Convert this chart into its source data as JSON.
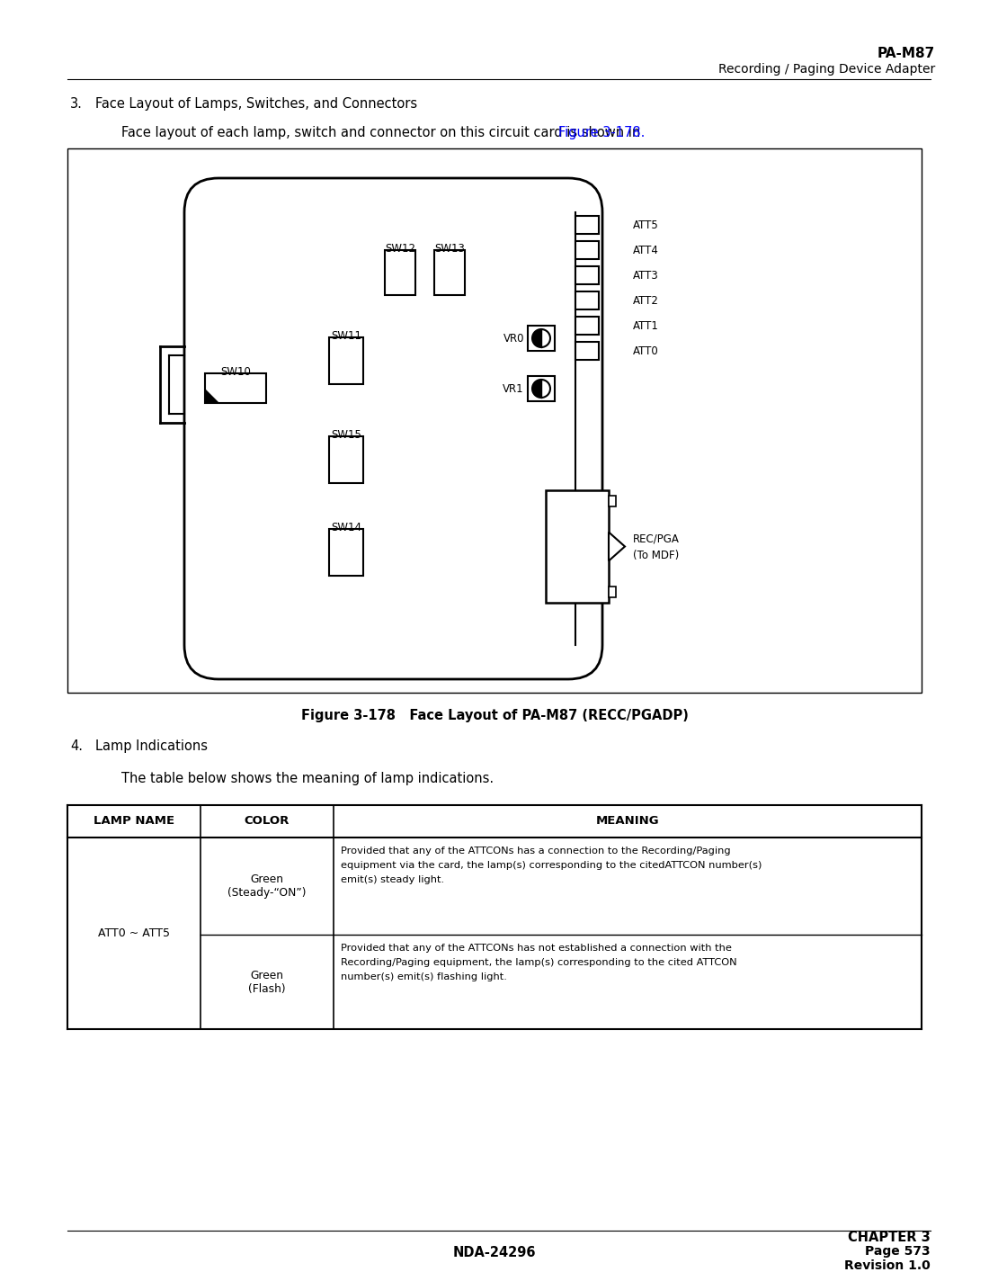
{
  "header_bold": "PA-M87",
  "header_normal": "Recording / Paging Device Adapter",
  "section3_body": "Face layout of each lamp, switch and connector on this circuit card is shown in ",
  "figure_ref": "Figure 3-178.",
  "figure_caption": "Figure 3-178   Face Layout of PA-M87 (RECC/PGADP)",
  "section4_title": "Lamp Indications",
  "section4_body": "The table below shows the meaning of lamp indications.",
  "footer_left": "NDA-24296",
  "footer_right_line1": "CHAPTER 3",
  "footer_right_line2": "Page 573",
  "footer_right_line3": "Revision 1.0",
  "link_color": "#0000FF",
  "bg_color": "#FFFFFF",
  "text_color": "#000000"
}
